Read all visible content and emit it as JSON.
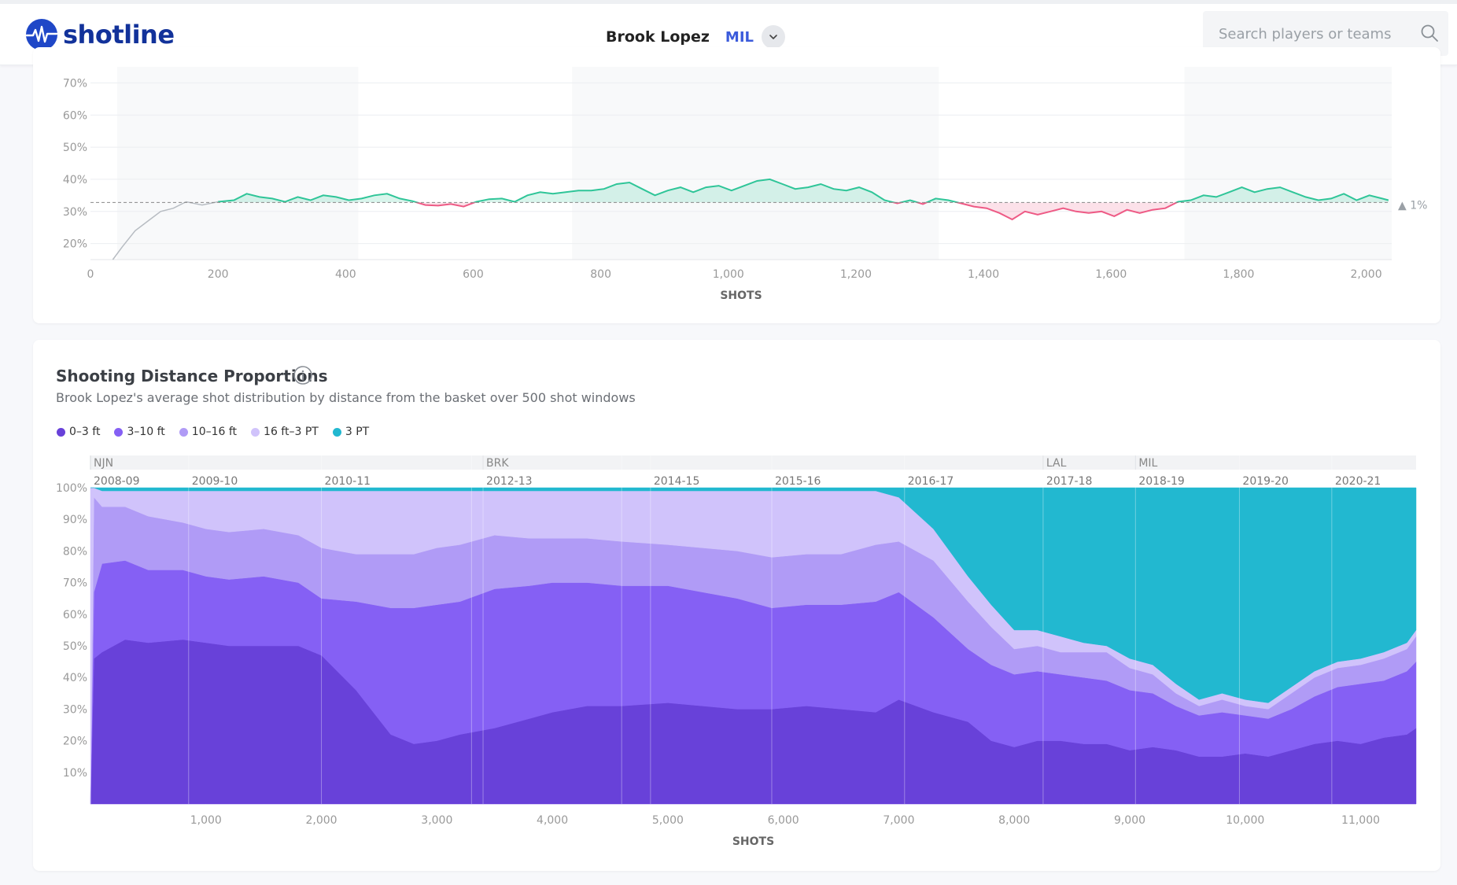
{
  "app": {
    "name": "shotline",
    "player": "Brook Lopez",
    "team": "MIL",
    "search_placeholder": "Search players or teams"
  },
  "colors": {
    "above": "#2fc598",
    "below": "#ee5a85",
    "zone_0_3": "#6841d9",
    "zone_3_10": "#8560f4",
    "zone_10_16": "#b09bf6",
    "zone_16_3": "#d0c3fb",
    "zone_3pt": "#22b8d0"
  },
  "chart_data": [
    {
      "type": "line",
      "xlabel": "SHOTS",
      "ylabel": "",
      "xlim": [
        0,
        2040
      ],
      "ylim": [
        15,
        75
      ],
      "x_ticks": [
        0,
        200,
        400,
        600,
        800,
        1000,
        1200,
        1400,
        1600,
        1800,
        2000
      ],
      "x_tick_labels": [
        "0",
        "200",
        "400",
        "600",
        "800",
        "1,000",
        "1,200",
        "1,400",
        "1,600",
        "1,800",
        "2,000"
      ],
      "y_ticks": [
        20,
        30,
        40,
        50,
        60,
        70
      ],
      "y_tick_labels": [
        "20%",
        "30%",
        "40%",
        "50%",
        "60%",
        "70%"
      ],
      "baseline": 32.8,
      "delta_label": "▲ 1%",
      "season_bands": [
        [
          42,
          420
        ],
        [
          755,
          1330
        ],
        [
          1715,
          2040
        ]
      ],
      "series": [
        {
          "x": [
            35,
            50,
            70,
            90,
            110,
            130,
            150,
            175,
            200
          ],
          "y": [
            15,
            19,
            24,
            27,
            30,
            31,
            33,
            32,
            33
          ]
        },
        {
          "x": [
            200,
            225,
            245,
            265,
            285,
            305,
            325,
            345,
            365,
            385,
            405,
            425,
            445,
            465,
            485,
            505,
            525,
            545,
            565,
            585,
            605,
            625,
            645,
            665,
            685,
            705,
            725,
            745,
            765,
            785,
            805,
            825,
            845,
            865,
            885,
            905,
            925,
            945,
            965,
            985,
            1005,
            1025,
            1045,
            1065,
            1085,
            1105,
            1125,
            1145,
            1165,
            1185,
            1205,
            1225,
            1245,
            1265,
            1285,
            1305,
            1325,
            1345,
            1365,
            1385,
            1405,
            1425,
            1445,
            1465,
            1485,
            1505,
            1525,
            1545,
            1565,
            1585,
            1605,
            1625,
            1645,
            1665,
            1685,
            1705,
            1725,
            1745,
            1765,
            1785,
            1805,
            1825,
            1845,
            1865,
            1885,
            1905,
            1925,
            1945,
            1965,
            1985,
            2005,
            2025,
            2035
          ],
          "y": [
            33,
            33.5,
            35.5,
            34.5,
            34,
            33,
            34.5,
            33.5,
            35,
            34.5,
            33.5,
            34,
            35,
            35.5,
            34,
            33.2,
            32,
            31.8,
            32.3,
            31.5,
            33,
            33.8,
            34,
            33,
            35,
            36,
            35.5,
            36,
            36.5,
            36.5,
            37,
            38.5,
            39,
            37,
            35,
            36.5,
            37.5,
            36,
            37.5,
            38,
            36.5,
            38,
            39.5,
            40,
            38.5,
            37,
            37.5,
            38.5,
            37,
            36.5,
            37.5,
            36,
            33.5,
            32.5,
            33.5,
            32.3,
            34,
            33.5,
            32.5,
            31.5,
            31,
            29.5,
            27.5,
            30,
            29,
            30,
            31,
            30,
            29.5,
            30,
            28.5,
            30.5,
            29.5,
            30.5,
            31,
            33,
            33.5,
            35,
            34.5,
            36,
            37.5,
            36,
            37,
            37.5,
            36,
            34.5,
            33.5,
            34,
            35.5,
            33.5,
            35,
            34,
            33.5
          ]
        }
      ]
    },
    {
      "type": "area",
      "title": "Shooting Distance Proportions",
      "subtitle": "Brook Lopez's average shot distribution by distance from the basket over 500 shot windows",
      "xlabel": "SHOTS",
      "stacked": true,
      "xlim": [
        0,
        11480
      ],
      "ylim": [
        0,
        100
      ],
      "x_ticks": [
        1000,
        2000,
        3000,
        4000,
        5000,
        6000,
        7000,
        8000,
        9000,
        10000,
        11000
      ],
      "x_tick_labels": [
        "1,000",
        "2,000",
        "3,000",
        "4,000",
        "5,000",
        "6,000",
        "7,000",
        "8,000",
        "9,000",
        "10,000",
        "11,000"
      ],
      "y_ticks": [
        10,
        20,
        30,
        40,
        50,
        60,
        70,
        80,
        90,
        100
      ],
      "y_tick_labels": [
        "10%",
        "20%",
        "30%",
        "40%",
        "50%",
        "60%",
        "70%",
        "80%",
        "90%",
        "100%"
      ],
      "teams": [
        {
          "label": "NJN",
          "x": 0
        },
        {
          "label": "BRK",
          "x": 3400
        },
        {
          "label": "LAL",
          "x": 8250
        },
        {
          "label": "MIL",
          "x": 9050
        }
      ],
      "seasons": [
        {
          "label": "2008-09",
          "x": 0
        },
        {
          "label": "2009-10",
          "x": 850
        },
        {
          "label": "2010-11",
          "x": 2000
        },
        {
          "label": "2012-13",
          "x": 3400
        },
        {
          "label": "2014-15",
          "x": 4850
        },
        {
          "label": "2015-16",
          "x": 5900
        },
        {
          "label": "2016-17",
          "x": 7050
        },
        {
          "label": "2017-18",
          "x": 8250
        },
        {
          "label": "2018-19",
          "x": 9050
        },
        {
          "label": "2019-20",
          "x": 9950
        },
        {
          "label": "2020-21",
          "x": 10750
        }
      ],
      "season_lines": [
        850,
        2000,
        3300,
        3400,
        4600,
        4850,
        5900,
        7050,
        8250,
        9050,
        9950,
        10750
      ],
      "x": [
        0,
        30,
        100,
        300,
        500,
        800,
        1000,
        1200,
        1500,
        1800,
        2000,
        2300,
        2600,
        2800,
        3000,
        3200,
        3500,
        3800,
        4000,
        4300,
        4600,
        5000,
        5300,
        5600,
        5900,
        6200,
        6500,
        6800,
        7000,
        7300,
        7600,
        7800,
        8000,
        8200,
        8400,
        8600,
        8800,
        9000,
        9200,
        9400,
        9600,
        9800,
        10000,
        10200,
        10400,
        10600,
        10800,
        11000,
        11200,
        11400,
        11480
      ],
      "series": [
        {
          "name": "0–3 ft",
          "values": [
            0,
            46,
            48,
            52,
            51,
            52,
            51,
            50,
            50,
            50,
            47,
            36,
            22,
            19,
            20,
            22,
            24,
            27,
            29,
            31,
            31,
            32,
            31,
            30,
            30,
            31,
            30,
            29,
            33,
            29,
            26,
            20,
            18,
            20,
            20,
            19,
            19,
            17,
            18,
            17,
            15,
            15,
            16,
            15,
            17,
            19,
            20,
            19,
            21,
            22,
            24
          ]
        },
        {
          "name": "3–10 ft",
          "values": [
            0,
            21,
            28,
            25,
            23,
            22,
            21,
            21,
            22,
            20,
            18,
            28,
            40,
            43,
            43,
            42,
            44,
            42,
            41,
            39,
            38,
            37,
            36,
            35,
            32,
            32,
            33,
            35,
            34,
            30,
            23,
            24,
            23,
            22,
            21,
            21,
            20,
            19,
            17,
            14,
            13,
            14,
            12,
            12,
            13,
            15,
            17,
            19,
            18,
            20,
            21
          ]
        },
        {
          "name": "10–16 ft",
          "values": [
            0,
            30,
            18,
            17,
            17,
            15,
            15,
            15,
            15,
            15,
            16,
            15,
            17,
            17,
            18,
            18,
            17,
            15,
            14,
            14,
            14,
            13,
            14,
            15,
            16,
            16,
            16,
            18,
            16,
            18,
            15,
            12,
            8,
            8,
            7,
            8,
            9,
            7,
            6,
            4,
            3,
            4,
            3,
            3,
            5,
            6,
            6,
            6,
            7,
            7,
            8
          ]
        },
        {
          "name": "16 ft–3 PT",
          "values": [
            100,
            3,
            5,
            5,
            8,
            10,
            12,
            13,
            12,
            14,
            18,
            20,
            20,
            20,
            18,
            17,
            14,
            15,
            15,
            15,
            16,
            17,
            18,
            19,
            21,
            20,
            20,
            17,
            14,
            10,
            8,
            7,
            6,
            5,
            5,
            3,
            2,
            3,
            3,
            3,
            2,
            2,
            2,
            2,
            2,
            2,
            2,
            2,
            2,
            2,
            2
          ]
        },
        {
          "name": "3 PT",
          "values": [
            0,
            0,
            1,
            1,
            1,
            1,
            1,
            1,
            1,
            1,
            1,
            1,
            1,
            1,
            1,
            1,
            1,
            1,
            1,
            1,
            1,
            1,
            1,
            1,
            1,
            1,
            1,
            1,
            3,
            13,
            28,
            37,
            45,
            45,
            47,
            49,
            50,
            54,
            56,
            62,
            67,
            65,
            67,
            68,
            63,
            58,
            55,
            54,
            52,
            49,
            45
          ]
        }
      ]
    }
  ]
}
